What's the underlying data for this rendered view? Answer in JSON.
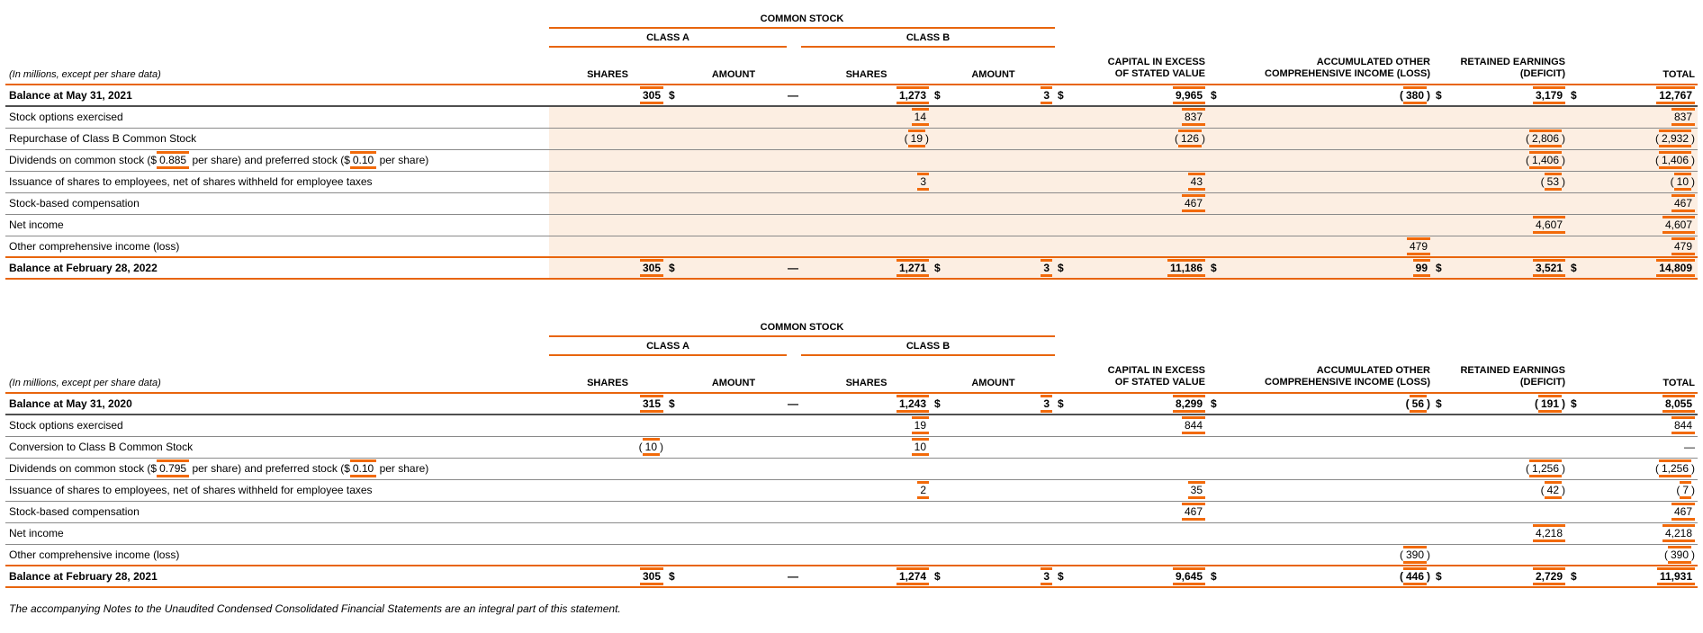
{
  "meta_note": "(In millions, except per share data)",
  "footer_note": "The accompanying Notes to the Unaudited Condensed Consolidated Financial Statements are an integral part of this statement.",
  "colors": {
    "accent": "#E8650D",
    "tag_mark": "#F26A0A",
    "row_shade": "#FCEEE2",
    "line_gray": "#8A8A8A",
    "line_dark": "#4F4F4F"
  },
  "columns": {
    "common_stock": "COMMON STOCK",
    "class_a": "CLASS A",
    "class_b": "CLASS B",
    "shares": "SHARES",
    "amount": "AMOUNT",
    "capital": [
      "CAPITAL IN EXCESS",
      "OF STATED VALUE"
    ],
    "aoci": [
      "ACCUMULATED OTHER",
      "COMPREHENSIVE INCOME (LOSS)"
    ],
    "retained": [
      "RETAINED EARNINGS",
      "(DEFICIT)"
    ],
    "total": "TOTAL"
  },
  "tables": [
    {
      "shaded": true,
      "rows": [
        {
          "bold": true,
          "label": [
            {
              "t": "Balance at May 31, 2021"
            }
          ],
          "cells": [
            {
              "v": "305",
              "tag": true
            },
            {
              "dollar": true,
              "dash": true
            },
            {
              "v": "1,273",
              "tag": true
            },
            {
              "dollar": true,
              "v": "3",
              "tag": true
            },
            {
              "dollar": true,
              "v": "9,965",
              "tag": true
            },
            {
              "dollar": true,
              "v": "380",
              "tag": true,
              "neg": true
            },
            {
              "dollar": true,
              "v": "3,179",
              "tag": true
            },
            {
              "dollar": true,
              "v": "12,767",
              "tag": true
            }
          ]
        },
        {
          "label": [
            {
              "t": "Stock options exercised"
            }
          ],
          "cells": [
            null,
            null,
            {
              "v": "14",
              "tag": true
            },
            null,
            {
              "v": "837",
              "tag": true
            },
            null,
            null,
            {
              "v": "837",
              "tag": true
            }
          ]
        },
        {
          "label": [
            {
              "t": "Repurchase of Class B Common Stock"
            }
          ],
          "cells": [
            null,
            null,
            {
              "v": "19",
              "tag": true,
              "neg": true
            },
            null,
            {
              "v": "126",
              "tag": true,
              "neg": true
            },
            null,
            {
              "v": "2,806",
              "tag": true,
              "neg": true
            },
            {
              "v": "2,932",
              "tag": true,
              "neg": true
            }
          ]
        },
        {
          "label": [
            {
              "t": "Dividends on common stock ($"
            },
            {
              "t": "0.885",
              "tag": true
            },
            {
              "t": " per share) and preferred stock ($"
            },
            {
              "t": "0.10",
              "tag": true
            },
            {
              "t": " per share)"
            }
          ],
          "cells": [
            null,
            null,
            null,
            null,
            null,
            null,
            {
              "v": "1,406",
              "tag": true,
              "neg": true
            },
            {
              "v": "1,406",
              "tag": true,
              "neg": true
            }
          ]
        },
        {
          "label": [
            {
              "t": "Issuance of shares to employees, net of shares withheld for employee taxes"
            }
          ],
          "cells": [
            null,
            null,
            {
              "v": "3",
              "tag": true
            },
            null,
            {
              "v": "43",
              "tag": true
            },
            null,
            {
              "v": "53",
              "tag": true,
              "neg": true
            },
            {
              "v": "10",
              "tag": true,
              "neg": true
            }
          ]
        },
        {
          "label": [
            {
              "t": "Stock-based compensation"
            }
          ],
          "cells": [
            null,
            null,
            null,
            null,
            {
              "v": "467",
              "tag": true
            },
            null,
            null,
            {
              "v": "467",
              "tag": true
            }
          ]
        },
        {
          "label": [
            {
              "t": "Net income"
            }
          ],
          "cells": [
            null,
            null,
            null,
            null,
            null,
            null,
            {
              "v": "4,607",
              "tag": true
            },
            {
              "v": "4,607",
              "tag": true
            }
          ]
        },
        {
          "label": [
            {
              "t": "Other comprehensive income (loss)"
            }
          ],
          "cells": [
            null,
            null,
            null,
            null,
            null,
            {
              "v": "479",
              "tag": true
            },
            null,
            {
              "v": "479",
              "tag": true
            }
          ]
        },
        {
          "bold": true,
          "label": [
            {
              "t": "Balance at February 28, 2022"
            }
          ],
          "cells": [
            {
              "v": "305",
              "tag": true
            },
            {
              "dollar": true,
              "dash": true
            },
            {
              "v": "1,271",
              "tag": true
            },
            {
              "dollar": true,
              "v": "3",
              "tag": true
            },
            {
              "dollar": true,
              "v": "11,186",
              "tag": true
            },
            {
              "dollar": true,
              "v": "99",
              "tag": true
            },
            {
              "dollar": true,
              "v": "3,521",
              "tag": true
            },
            {
              "dollar": true,
              "v": "14,809",
              "tag": true
            }
          ]
        }
      ]
    },
    {
      "shaded": false,
      "rows": [
        {
          "bold": true,
          "label": [
            {
              "t": "Balance at May 31, 2020"
            }
          ],
          "cells": [
            {
              "v": "315",
              "tag": true
            },
            {
              "dollar": true,
              "dash": true
            },
            {
              "v": "1,243",
              "tag": true
            },
            {
              "dollar": true,
              "v": "3",
              "tag": true
            },
            {
              "dollar": true,
              "v": "8,299",
              "tag": true
            },
            {
              "dollar": true,
              "v": "56",
              "tag": true,
              "neg": true
            },
            {
              "dollar": true,
              "v": "191",
              "tag": true,
              "neg": true
            },
            {
              "dollar": true,
              "v": "8,055",
              "tag": true
            }
          ]
        },
        {
          "label": [
            {
              "t": "Stock options exercised"
            }
          ],
          "cells": [
            null,
            null,
            {
              "v": "19",
              "tag": true
            },
            null,
            {
              "v": "844",
              "tag": true
            },
            null,
            null,
            {
              "v": "844",
              "tag": true
            }
          ]
        },
        {
          "label": [
            {
              "t": "Conversion to Class B Common Stock"
            }
          ],
          "cells": [
            {
              "v": "10",
              "tag": true,
              "neg": true
            },
            null,
            {
              "v": "10",
              "tag": true
            },
            null,
            null,
            null,
            null,
            {
              "dash": true
            }
          ]
        },
        {
          "label": [
            {
              "t": "Dividends on common stock ($"
            },
            {
              "t": "0.795",
              "tag": true
            },
            {
              "t": " per share) and preferred stock ($"
            },
            {
              "t": "0.10",
              "tag": true
            },
            {
              "t": " per share)"
            }
          ],
          "cells": [
            null,
            null,
            null,
            null,
            null,
            null,
            {
              "v": "1,256",
              "tag": true,
              "neg": true
            },
            {
              "v": "1,256",
              "tag": true,
              "neg": true
            }
          ]
        },
        {
          "label": [
            {
              "t": "Issuance of shares to employees, net of shares withheld for employee taxes"
            }
          ],
          "cells": [
            null,
            null,
            {
              "v": "2",
              "tag": true
            },
            null,
            {
              "v": "35",
              "tag": true
            },
            null,
            {
              "v": "42",
              "tag": true,
              "neg": true
            },
            {
              "v": "7",
              "tag": true,
              "neg": true
            }
          ]
        },
        {
          "label": [
            {
              "t": "Stock-based compensation"
            }
          ],
          "cells": [
            null,
            null,
            null,
            null,
            {
              "v": "467",
              "tag": true
            },
            null,
            null,
            {
              "v": "467",
              "tag": true
            }
          ]
        },
        {
          "label": [
            {
              "t": "Net income"
            }
          ],
          "cells": [
            null,
            null,
            null,
            null,
            null,
            null,
            {
              "v": "4,218",
              "tag": true
            },
            {
              "v": "4,218",
              "tag": true
            }
          ]
        },
        {
          "label": [
            {
              "t": "Other comprehensive income (loss)"
            }
          ],
          "cells": [
            null,
            null,
            null,
            null,
            null,
            {
              "v": "390",
              "tag": true,
              "neg": true
            },
            null,
            {
              "v": "390",
              "tag": true,
              "neg": true
            }
          ]
        },
        {
          "bold": true,
          "label": [
            {
              "t": "Balance at February 28, 2021"
            }
          ],
          "cells": [
            {
              "v": "305",
              "tag": true
            },
            {
              "dollar": true,
              "dash": true
            },
            {
              "v": "1,274",
              "tag": true
            },
            {
              "dollar": true,
              "v": "3",
              "tag": true
            },
            {
              "dollar": true,
              "v": "9,645",
              "tag": true
            },
            {
              "dollar": true,
              "v": "446",
              "tag": true,
              "neg": true
            },
            {
              "dollar": true,
              "v": "2,729",
              "tag": true
            },
            {
              "dollar": true,
              "v": "11,931",
              "tag": true
            }
          ]
        }
      ]
    }
  ]
}
